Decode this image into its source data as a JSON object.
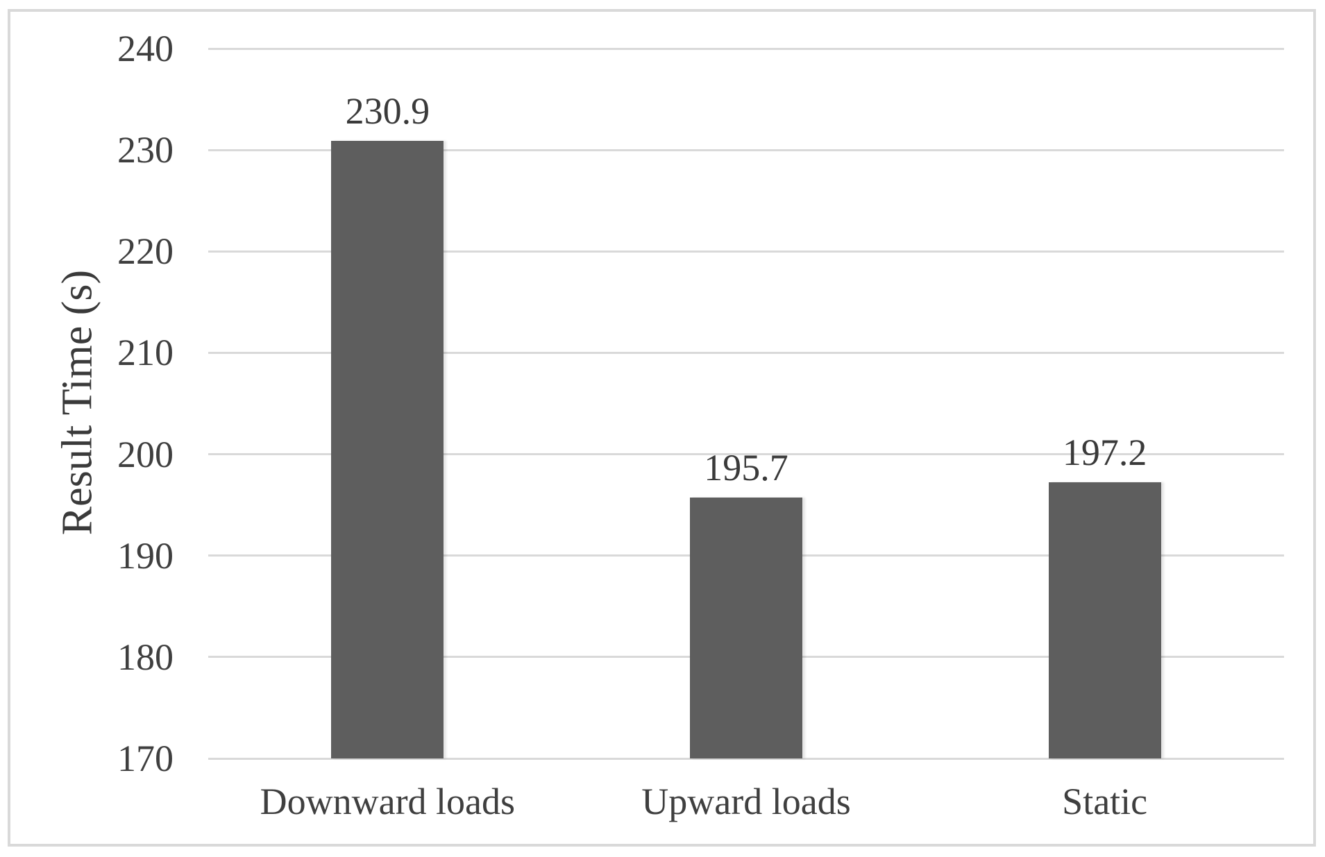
{
  "chart_data": {
    "type": "bar",
    "title": "",
    "categories": [
      "Downward loads",
      "Upward loads",
      "Static"
    ],
    "values": [
      230.9,
      195.7,
      197.2
    ],
    "data_labels": [
      "230.9",
      "195.7",
      "197.2"
    ],
    "xlabel": "",
    "ylabel": "Result Time (s)",
    "ylim": [
      170,
      240
    ],
    "ytick_step": 10,
    "ytick_labels": [
      "170",
      "180",
      "190",
      "200",
      "210",
      "220",
      "230",
      "240"
    ],
    "grid": true,
    "legend": false,
    "colors": {
      "bar": "#5e5e5e",
      "gridline": "#d9d9d9",
      "frame_border": "#d9d9d9",
      "text": "#3f3f3f",
      "background": "#ffffff"
    }
  }
}
